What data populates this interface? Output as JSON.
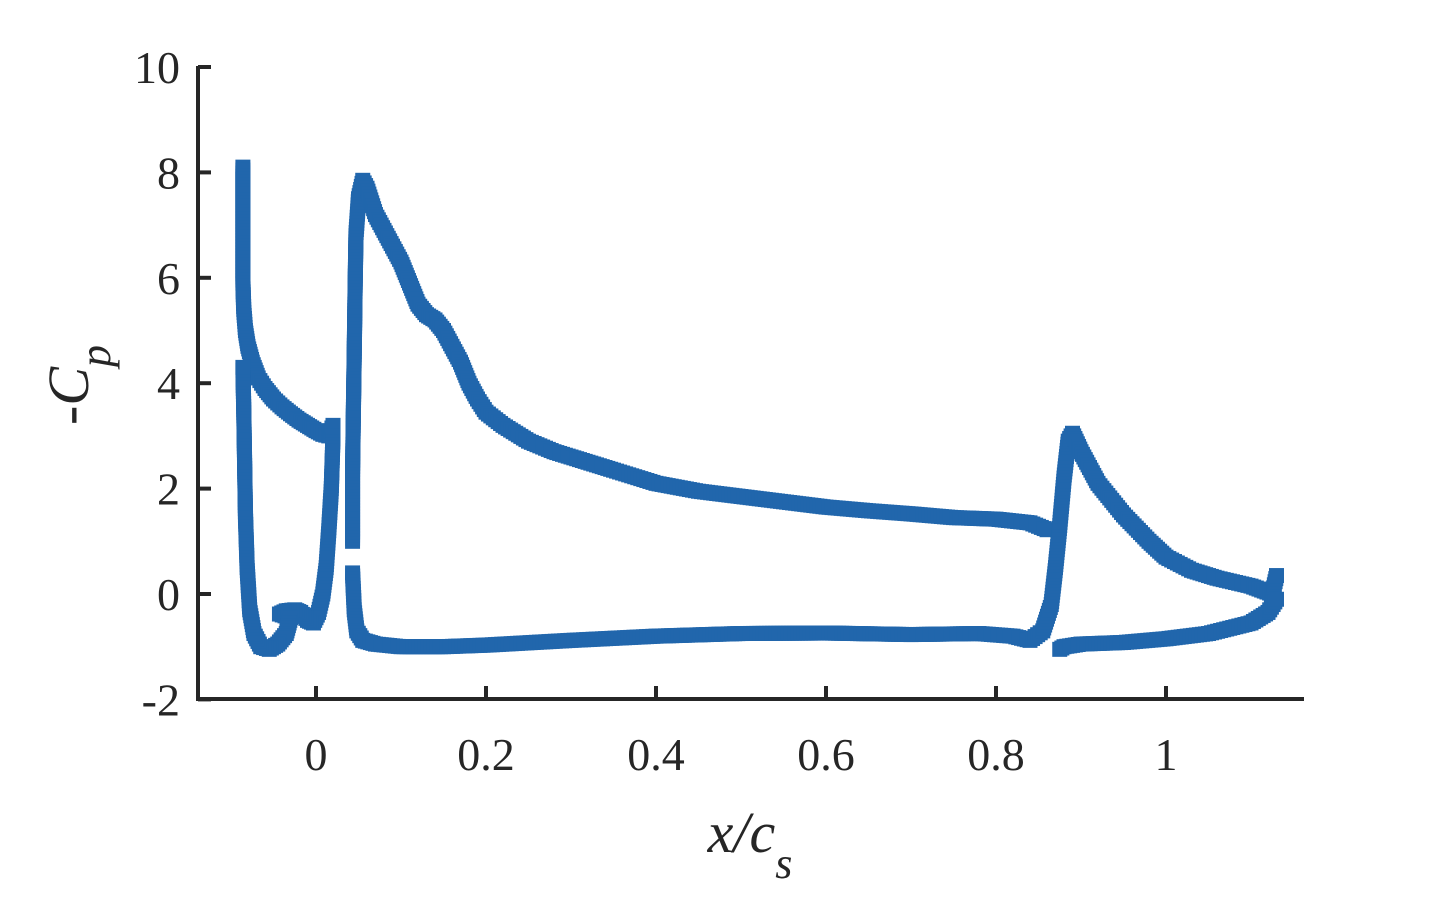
{
  "chart_data": {
    "type": "scatter",
    "xlabel": {
      "main": "x/c",
      "sub": "s"
    },
    "ylabel": {
      "main": "-C",
      "sub": "p"
    },
    "xlim": [
      -0.14,
      1.15
    ],
    "ylim": [
      -2,
      10
    ],
    "x_ticks": [
      0,
      0.2,
      0.4,
      0.6,
      0.8,
      1
    ],
    "x_tick_labels": [
      "0",
      "0.2",
      "0.4",
      "0.6",
      "0.8",
      "1"
    ],
    "y_ticks": [
      -2,
      0,
      2,
      4,
      6,
      8,
      10
    ],
    "y_tick_labels": [
      "-2",
      "0",
      "2",
      "4",
      "6",
      "8",
      "10"
    ],
    "marker": "square",
    "marker_color": "#2166ac",
    "series": [
      {
        "points": [
          [
            -0.086,
            8.1
          ],
          [
            -0.086,
            7.3
          ],
          [
            -0.086,
            6.6
          ],
          [
            -0.086,
            5.9
          ],
          [
            -0.085,
            5.4
          ],
          [
            -0.083,
            5.0
          ],
          [
            -0.08,
            4.7
          ],
          [
            -0.075,
            4.4
          ],
          [
            -0.068,
            4.1
          ],
          [
            -0.06,
            3.9
          ],
          [
            -0.05,
            3.7
          ],
          [
            -0.04,
            3.55
          ],
          [
            -0.03,
            3.42
          ],
          [
            -0.02,
            3.3
          ],
          [
            -0.01,
            3.2
          ],
          [
            0.0,
            3.1
          ],
          [
            0.008,
            3.03
          ],
          [
            0.015,
            3.0
          ],
          [
            0.02,
            3.2
          ]
        ]
      },
      {
        "points": [
          [
            0.02,
            3.0
          ],
          [
            0.018,
            2.0
          ],
          [
            0.015,
            1.2
          ],
          [
            0.012,
            0.5
          ],
          [
            0.008,
            0.0
          ],
          [
            0.003,
            -0.35
          ],
          [
            -0.003,
            -0.55
          ],
          [
            -0.01,
            -0.5
          ],
          [
            -0.018,
            -0.35
          ],
          [
            -0.025,
            -0.3
          ],
          [
            -0.035,
            -0.32
          ],
          [
            -0.043,
            -0.38
          ],
          [
            -0.03,
            -0.45
          ],
          [
            -0.035,
            -0.75
          ],
          [
            -0.045,
            -0.95
          ],
          [
            -0.055,
            -1.05
          ],
          [
            -0.065,
            -1.0
          ],
          [
            -0.073,
            -0.75
          ],
          [
            -0.078,
            -0.3
          ],
          [
            -0.081,
            0.5
          ],
          [
            -0.083,
            1.5
          ],
          [
            -0.084,
            2.5
          ],
          [
            -0.085,
            3.5
          ],
          [
            -0.086,
            4.3
          ]
        ]
      },
      {
        "points": [
          [
            0.043,
            1.0
          ],
          [
            0.043,
            2.3
          ],
          [
            0.044,
            3.5
          ],
          [
            0.045,
            4.6
          ],
          [
            0.046,
            5.8
          ],
          [
            0.047,
            6.8
          ],
          [
            0.05,
            7.5
          ],
          [
            0.055,
            7.85
          ],
          [
            0.06,
            7.7
          ],
          [
            0.07,
            7.2
          ],
          [
            0.08,
            6.9
          ],
          [
            0.09,
            6.6
          ],
          [
            0.1,
            6.3
          ],
          [
            0.11,
            5.9
          ],
          [
            0.12,
            5.5
          ],
          [
            0.13,
            5.3
          ],
          [
            0.14,
            5.2
          ],
          [
            0.15,
            5.0
          ],
          [
            0.16,
            4.7
          ],
          [
            0.17,
            4.4
          ],
          [
            0.18,
            4.0
          ],
          [
            0.19,
            3.7
          ],
          [
            0.2,
            3.45
          ],
          [
            0.22,
            3.2
          ],
          [
            0.25,
            2.9
          ],
          [
            0.28,
            2.7
          ],
          [
            0.31,
            2.55
          ],
          [
            0.35,
            2.35
          ],
          [
            0.4,
            2.1
          ],
          [
            0.45,
            1.95
          ],
          [
            0.5,
            1.85
          ],
          [
            0.55,
            1.75
          ],
          [
            0.6,
            1.65
          ],
          [
            0.65,
            1.58
          ],
          [
            0.7,
            1.52
          ],
          [
            0.75,
            1.45
          ],
          [
            0.8,
            1.42
          ],
          [
            0.84,
            1.35
          ],
          [
            0.86,
            1.22
          ]
        ]
      },
      {
        "points": [
          [
            0.043,
            0.4
          ],
          [
            0.045,
            -0.3
          ],
          [
            0.048,
            -0.7
          ],
          [
            0.055,
            -0.88
          ],
          [
            0.07,
            -0.95
          ],
          [
            0.1,
            -1.0
          ],
          [
            0.15,
            -1.0
          ],
          [
            0.2,
            -0.97
          ],
          [
            0.3,
            -0.88
          ],
          [
            0.4,
            -0.8
          ],
          [
            0.5,
            -0.75
          ],
          [
            0.6,
            -0.74
          ],
          [
            0.7,
            -0.77
          ],
          [
            0.78,
            -0.75
          ],
          [
            0.82,
            -0.8
          ],
          [
            0.84,
            -0.88
          ],
          [
            0.855,
            -0.7
          ],
          [
            0.865,
            -0.2
          ],
          [
            0.87,
            0.5
          ],
          [
            0.875,
            1.3
          ],
          [
            0.88,
            2.2
          ],
          [
            0.885,
            2.9
          ],
          [
            0.89,
            3.05
          ],
          [
            0.9,
            2.7
          ],
          [
            0.92,
            2.1
          ],
          [
            0.95,
            1.5
          ],
          [
            0.98,
            1.0
          ],
          [
            1.0,
            0.7
          ],
          [
            1.03,
            0.45
          ],
          [
            1.06,
            0.3
          ],
          [
            1.1,
            0.15
          ],
          [
            1.125,
            0.0
          ],
          [
            1.13,
            0.35
          ]
        ]
      },
      {
        "points": [
          [
            0.875,
            -1.05
          ],
          [
            0.88,
            -1.0
          ],
          [
            0.9,
            -0.95
          ],
          [
            0.95,
            -0.92
          ],
          [
            1.0,
            -0.85
          ],
          [
            1.05,
            -0.75
          ],
          [
            1.1,
            -0.55
          ],
          [
            1.12,
            -0.35
          ],
          [
            1.13,
            -0.1
          ]
        ]
      }
    ]
  }
}
